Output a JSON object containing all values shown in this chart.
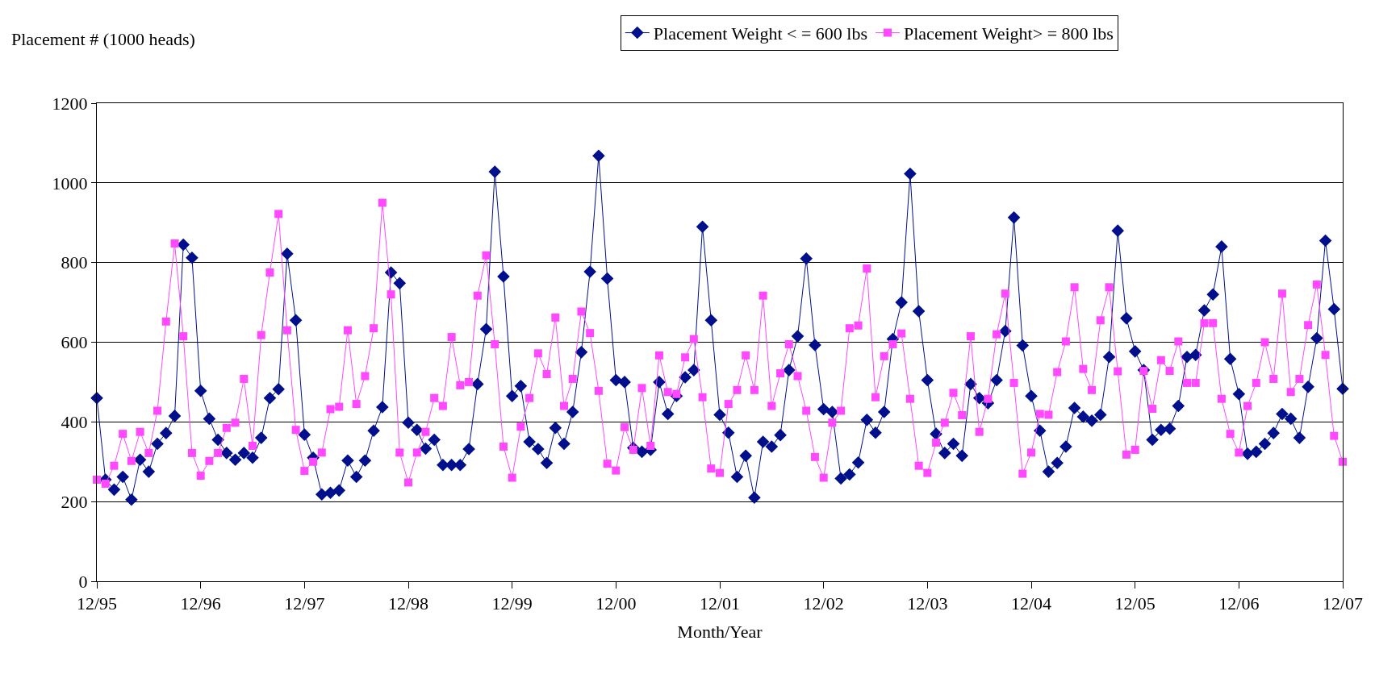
{
  "chart_data": {
    "type": "line",
    "ylabel": "Placement # (1000 heads)",
    "xlabel": "Month/Year",
    "categories": [
      "12/95",
      null,
      null,
      null,
      null,
      null,
      null,
      null,
      null,
      null,
      null,
      null,
      "12/96",
      null,
      null,
      null,
      null,
      null,
      null,
      null,
      null,
      null,
      null,
      null,
      "12/97",
      null,
      null,
      null,
      null,
      null,
      null,
      null,
      null,
      null,
      null,
      null,
      "12/98",
      null,
      null,
      null,
      null,
      null,
      null,
      null,
      null,
      null,
      null,
      null,
      "12/99",
      null,
      null,
      null,
      null,
      null,
      null,
      null,
      null,
      null,
      null,
      null,
      "12/00",
      null,
      null,
      null,
      null,
      null,
      null,
      null,
      null,
      null,
      null,
      null,
      "12/01",
      null,
      null,
      null,
      null,
      null,
      null,
      null,
      null,
      null,
      null,
      null,
      "12/02",
      null,
      null,
      null,
      null,
      null,
      null,
      null,
      null,
      null,
      null,
      null,
      "12/03",
      null,
      null,
      null,
      null,
      null,
      null,
      null,
      null,
      null,
      null,
      null,
      "12/04",
      null,
      null,
      null,
      null,
      null,
      null,
      null,
      null,
      null,
      null,
      null,
      "12/05",
      null,
      null,
      null,
      null,
      null,
      null,
      null,
      null,
      null,
      null,
      null,
      "12/06",
      null,
      null,
      null,
      null,
      null,
      null,
      null,
      null,
      null,
      null,
      null,
      "12/07"
    ],
    "series": [
      {
        "name": "Placement Weight < = 600 lbs",
        "color": "#000f8c",
        "marker": "diamond",
        "values": [
          460,
          255,
          230,
          262,
          205,
          305,
          275,
          345,
          372,
          415,
          845,
          812,
          478,
          408,
          355,
          322,
          305,
          322,
          310,
          360,
          460,
          482,
          822,
          655,
          368,
          310,
          218,
          222,
          228,
          303,
          262,
          303,
          378,
          437,
          775,
          748,
          398,
          380,
          333,
          355,
          292,
          292,
          292,
          332,
          495,
          633,
          1028,
          765,
          465,
          490,
          350,
          332,
          297,
          385,
          345,
          425,
          575,
          777,
          1068,
          760,
          505,
          500,
          335,
          325,
          330,
          500,
          420,
          465,
          512,
          530,
          890,
          655,
          418,
          373,
          262,
          315,
          210,
          350,
          338,
          367,
          530,
          615,
          810,
          593,
          432,
          425,
          258,
          268,
          298,
          405,
          373,
          425,
          608,
          700,
          1023,
          678,
          505,
          370,
          322,
          345,
          315,
          495,
          460,
          447,
          505,
          628,
          913,
          592,
          465,
          378,
          275,
          297,
          338,
          435,
          413,
          403,
          418,
          563,
          880,
          660,
          577,
          530,
          355,
          380,
          383,
          440,
          563,
          568,
          680,
          720,
          840,
          558,
          470,
          320,
          325,
          345,
          372,
          420,
          408,
          360,
          488,
          610,
          855,
          683,
          483
        ]
      },
      {
        "name": "Placement Weight> = 800 lbs",
        "color": "#ff48ff",
        "marker": "square",
        "values": [
          255,
          245,
          290,
          370,
          302,
          375,
          322,
          428,
          652,
          848,
          615,
          322,
          265,
          302,
          322,
          385,
          398,
          508,
          340,
          618,
          775,
          922,
          630,
          380,
          277,
          300,
          323,
          432,
          438,
          630,
          445,
          515,
          635,
          950,
          720,
          323,
          248,
          323,
          375,
          460,
          440,
          613,
          492,
          500,
          717,
          818,
          595,
          338,
          260,
          388,
          460,
          572,
          520,
          662,
          440,
          508,
          677,
          623,
          478,
          295,
          278,
          387,
          330,
          485,
          340,
          567,
          475,
          470,
          562,
          608,
          462,
          283,
          272,
          445,
          480,
          567,
          480,
          717,
          440,
          522,
          595,
          515,
          428,
          312,
          260,
          398,
          428,
          635,
          642,
          785,
          462,
          565,
          595,
          622,
          458,
          290,
          272,
          348,
          398,
          473,
          417,
          615,
          375,
          458,
          620,
          722,
          498,
          270,
          323,
          420,
          418,
          525,
          602,
          738,
          533,
          480,
          655,
          738,
          527,
          318,
          330,
          528,
          433,
          555,
          528,
          602,
          498,
          498,
          648,
          648,
          458,
          370,
          323,
          440,
          498,
          600,
          508,
          722,
          475,
          508,
          643,
          745,
          568,
          365,
          300
        ]
      }
    ],
    "ylim": [
      0,
      1200
    ],
    "yticks": [
      0,
      200,
      400,
      600,
      800,
      1000,
      1200
    ],
    "grid": "y",
    "legend": "top",
    "line_style": "solid"
  }
}
